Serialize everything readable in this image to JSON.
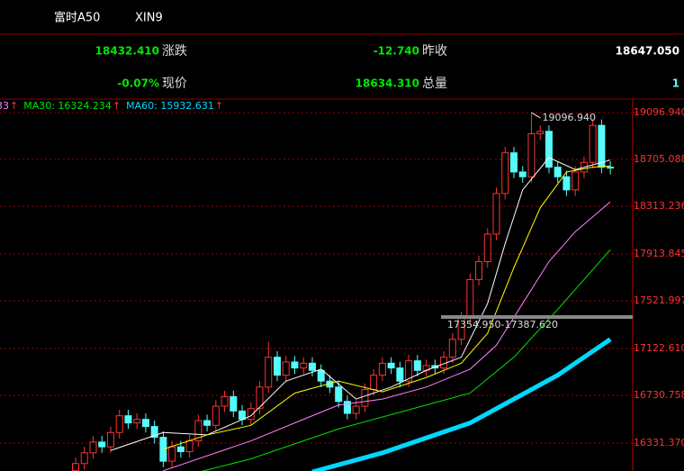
{
  "header": {
    "name": "富时A50",
    "code": "XIN9"
  },
  "info": [
    {
      "value": "18432.410",
      "label": "涨跌",
      "value2": "-12.740",
      "label2": "昨收",
      "value3": "18647.050"
    },
    {
      "value": "-0.07%",
      "label": "现价",
      "value2": "18634.310",
      "label2": "总量",
      "value3": "1"
    }
  ],
  "legend": [
    {
      "label": "33",
      "color": "#ff80ff"
    },
    {
      "label": "MA30: 16324.234",
      "color": "#00e600"
    },
    {
      "label": "MA60: 15932.631",
      "color": "#00d8ff"
    }
  ],
  "legend_arrow": "↑",
  "chart_data": {
    "type": "candlestick",
    "ylim": [
      16098,
      19210
    ],
    "yticks": [
      {
        "value": 19096.94,
        "label": "19096.940"
      },
      18705.088,
      18313.236,
      17913.845,
      17521.997,
      {
        "value": 17122.61,
        "label": "17122.610"
      },
      16730.758,
      {
        "value": 16331.37,
        "label": "16331.370"
      }
    ],
    "grid": true,
    "up_color": "#ff3232",
    "down_color": "#54fcfc",
    "open": [
      16100,
      16160,
      16250,
      16340,
      16300,
      16420,
      16560,
      16500,
      16530,
      16470,
      16380,
      16180,
      16300,
      16260,
      16350,
      16520,
      16480,
      16640,
      16720,
      16600,
      16530,
      16620,
      16800,
      17050,
      16900,
      17010,
      16960,
      17000,
      16940,
      16850,
      16800,
      16680,
      16580,
      16640,
      16780,
      16900,
      17000,
      16960,
      16850,
      17020,
      16940,
      16980,
      16960,
      17050,
      17200,
      17380,
      17700,
      17850,
      18080,
      18420,
      18760,
      18600,
      18560,
      18920,
      18940,
      18640,
      18560,
      18450,
      18600,
      18680,
      18990,
      18640
    ],
    "high": [
      16210,
      16300,
      16390,
      16390,
      16470,
      16610,
      16610,
      16580,
      16580,
      16520,
      16430,
      16350,
      16350,
      16400,
      16570,
      16570,
      16690,
      16770,
      16770,
      16650,
      16670,
      16850,
      17180,
      17100,
      17060,
      17060,
      17050,
      17050,
      16990,
      16900,
      16850,
      16730,
      16690,
      16830,
      16950,
      17050,
      17050,
      17010,
      17070,
      17070,
      17030,
      17030,
      17100,
      17250,
      17430,
      17750,
      17900,
      18130,
      18470,
      18810,
      18810,
      18650,
      19096.94,
      18990,
      18990,
      18690,
      18610,
      18650,
      18730,
      19040,
      19040,
      18690
    ],
    "low": [
      16050,
      16110,
      16200,
      16250,
      16250,
      16370,
      16450,
      16450,
      16420,
      16330,
      16130,
      16130,
      16210,
      16210,
      16300,
      16430,
      16430,
      16590,
      16550,
      16480,
      16480,
      16570,
      16750,
      16850,
      16850,
      16910,
      16910,
      16890,
      16800,
      16750,
      16630,
      16530,
      16530,
      16590,
      16730,
      16850,
      16910,
      16800,
      16800,
      16890,
      16890,
      16910,
      16910,
      17000,
      17150,
      17330,
      17650,
      17800,
      18030,
      18370,
      18550,
      18510,
      18510,
      18870,
      18590,
      18510,
      18400,
      18400,
      18550,
      18630,
      18590,
      18580
    ],
    "close": [
      16160,
      16250,
      16340,
      16300,
      16420,
      16560,
      16500,
      16530,
      16470,
      16380,
      16180,
      16300,
      16260,
      16350,
      16520,
      16480,
      16640,
      16720,
      16600,
      16530,
      16620,
      16800,
      17050,
      16900,
      17010,
      16960,
      17000,
      16940,
      16850,
      16800,
      16680,
      16580,
      16640,
      16780,
      16900,
      17000,
      16960,
      16850,
      17020,
      16940,
      16980,
      16960,
      17050,
      17200,
      17380,
      17700,
      17850,
      18080,
      18420,
      18760,
      18600,
      18560,
      18920,
      18940,
      18640,
      18560,
      18450,
      18600,
      18680,
      18990,
      18640,
      18634.31
    ],
    "lines": [
      {
        "color": "#ffffff",
        "width": 1,
        "x": [
          4,
          10,
          15,
          20,
          24,
          28,
          32,
          36,
          40,
          44,
          47,
          49,
          51,
          54,
          57,
          60,
          61
        ],
        "values": [
          16270,
          16420,
          16400,
          16560,
          16850,
          16950,
          16700,
          16800,
          16940,
          17050,
          17500,
          18000,
          18450,
          18720,
          18620,
          18680,
          18700
        ]
      },
      {
        "color": "#ffff00",
        "width": 1,
        "x": [
          10,
          15,
          20,
          25,
          30,
          35,
          40,
          44,
          47,
          50,
          53,
          56,
          59,
          61
        ],
        "values": [
          16280,
          16400,
          16480,
          16750,
          16850,
          16760,
          16880,
          17000,
          17250,
          17800,
          18300,
          18600,
          18640,
          18650
        ]
      },
      {
        "color": "#ff80ff",
        "width": 1,
        "x": [
          10,
          20,
          25,
          30,
          35,
          40,
          45,
          48,
          51,
          54,
          57,
          61
        ],
        "values": [
          16100,
          16350,
          16500,
          16650,
          16700,
          16800,
          16950,
          17150,
          17500,
          17850,
          18100,
          18350
        ]
      },
      {
        "color": "#00e600",
        "width": 1,
        "x": [
          12,
          20,
          30,
          40,
          45,
          50,
          55,
          61
        ],
        "values": [
          16050,
          16200,
          16450,
          16650,
          16750,
          17050,
          17450,
          17950
        ]
      },
      {
        "color": "#00d8ff",
        "width": 5,
        "x": [
          27,
          35,
          45,
          55,
          61
        ],
        "values": [
          16090,
          16250,
          16500,
          16900,
          17200
        ]
      }
    ],
    "annotations": {
      "high": "19096.940",
      "range": "17354.950-17387.620"
    }
  }
}
